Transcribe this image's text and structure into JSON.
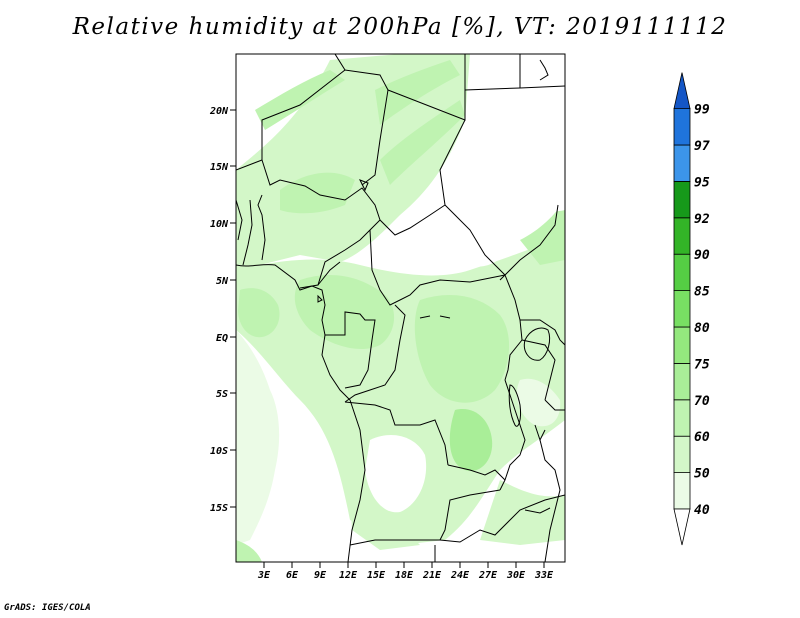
{
  "title": "Relative humidity at 200hPa [%], VT: 2019111112",
  "credit": "GrADS: IGES/COLA",
  "map": {
    "lat_labels": [
      "20N",
      "15N",
      "10N",
      "5N",
      "EQ",
      "5S",
      "10S",
      "15S"
    ],
    "lon_labels": [
      "3E",
      "6E",
      "9E",
      "12E",
      "15E",
      "18E",
      "21E",
      "24E",
      "27E",
      "30E",
      "33E"
    ]
  },
  "colorbar": {
    "levels": [
      "40",
      "50",
      "60",
      "70",
      "75",
      "80",
      "85",
      "90",
      "92",
      "95",
      "97",
      "99"
    ],
    "colors": [
      "#ebfbe6",
      "#d3f7c8",
      "#bff3b1",
      "#a9ee98",
      "#94e87e",
      "#78df63",
      "#55ce44",
      "#33b427",
      "#16991a",
      "#3c95ea",
      "#1f74dc",
      "#1456c6"
    ]
  }
}
